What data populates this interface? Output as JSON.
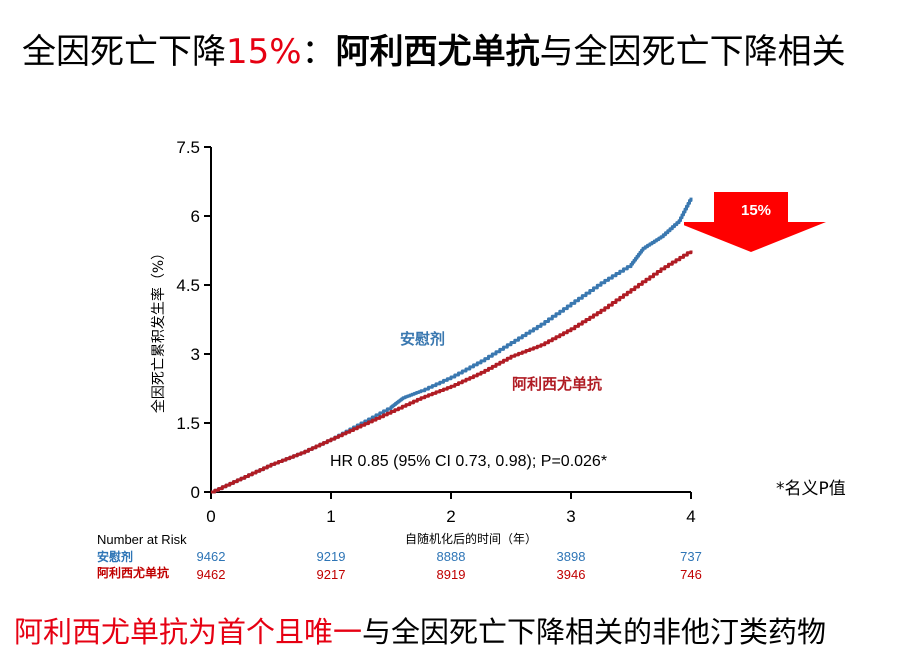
{
  "title": {
    "part1": "全因死亡下降",
    "percent": "15%",
    "colon": "：",
    "drug": "阿利西尤单抗",
    "part2": "与全因死亡下降相关"
  },
  "footnote": "*名义P值",
  "arrow_label": "15%",
  "footer": {
    "highlight": "阿利西尤单抗为首个且唯一",
    "rest": "与全因死亡下降相关的非他汀类药物"
  },
  "risk_table": {
    "title": "Number at Risk",
    "rows": [
      {
        "label": "安慰剂",
        "color": "#2e75b6",
        "values": [
          "9462",
          "9219",
          "8888",
          "3898",
          "737"
        ]
      },
      {
        "label": "阿利西尤单抗",
        "color": "#c00000",
        "values": [
          "9462",
          "9217",
          "8919",
          "3946",
          "746"
        ]
      }
    ]
  },
  "colors": {
    "placebo": "#3a78b0",
    "drug": "#b01c24",
    "accent": "#e60012"
  },
  "chart_data": {
    "type": "line",
    "xlabel": "自随机化后的时间（年）",
    "ylabel": "全因死亡累积发生率（%）",
    "xlim": [
      0,
      4
    ],
    "ylim": [
      0,
      7.5
    ],
    "xticks": [
      "0",
      "1",
      "2",
      "3",
      "4"
    ],
    "yticks": [
      "0",
      "1.5",
      "3",
      "4.5",
      "6",
      "7.5"
    ],
    "annotation": "HR 0.85 (95% CI 0.73, 0.98); P=0.026*",
    "series": [
      {
        "name": "安慰剂",
        "x": [
          0,
          0.25,
          0.5,
          0.75,
          1.0,
          1.25,
          1.5,
          1.6,
          1.75,
          2.0,
          2.25,
          2.5,
          2.75,
          3.0,
          3.25,
          3.5,
          3.6,
          3.75,
          3.9,
          4.0
        ],
        "y": [
          0,
          0.3,
          0.6,
          0.85,
          1.15,
          1.5,
          1.85,
          2.05,
          2.2,
          2.5,
          2.85,
          3.25,
          3.65,
          4.1,
          4.55,
          4.95,
          5.3,
          5.55,
          5.9,
          6.4
        ]
      },
      {
        "name": "阿利西尤单抗",
        "x": [
          0,
          0.25,
          0.5,
          0.75,
          1.0,
          1.25,
          1.5,
          1.75,
          2.0,
          2.25,
          2.5,
          2.75,
          3.0,
          3.25,
          3.5,
          3.75,
          4.0
        ],
        "y": [
          0,
          0.3,
          0.6,
          0.85,
          1.15,
          1.45,
          1.75,
          2.05,
          2.3,
          2.6,
          2.95,
          3.2,
          3.55,
          3.95,
          4.4,
          4.85,
          5.25
        ]
      }
    ]
  }
}
